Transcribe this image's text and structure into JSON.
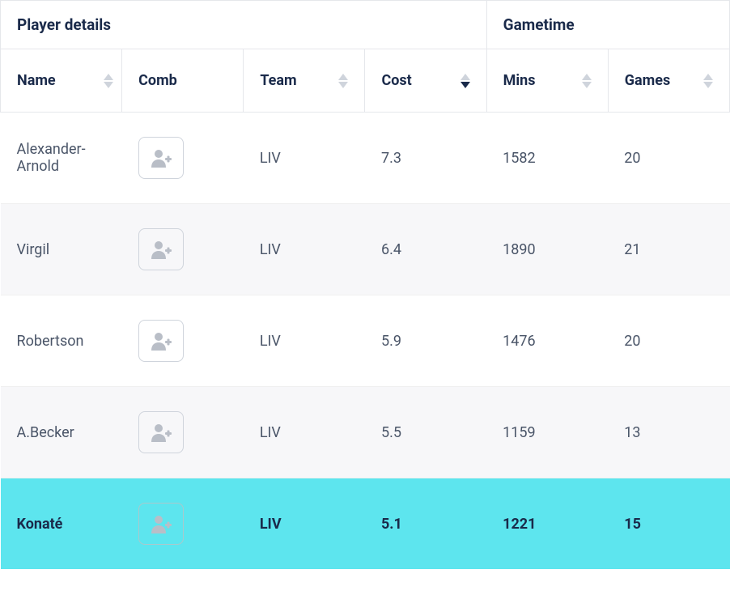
{
  "groups": [
    {
      "label": "Player details",
      "span": 4
    },
    {
      "label": "Gametime",
      "span": 2
    }
  ],
  "columns": [
    {
      "key": "name",
      "label": "Name",
      "sortable": true,
      "sorted": "none"
    },
    {
      "key": "comb",
      "label": "Comb",
      "sortable": false,
      "sorted": "none"
    },
    {
      "key": "team",
      "label": "Team",
      "sortable": true,
      "sorted": "none"
    },
    {
      "key": "cost",
      "label": "Cost",
      "sortable": true,
      "sorted": "desc"
    },
    {
      "key": "mins",
      "label": "Mins",
      "sortable": true,
      "sorted": "none"
    },
    {
      "key": "games",
      "label": "Games",
      "sortable": true,
      "sorted": "none"
    }
  ],
  "rows": [
    {
      "name": "Alexander-Arnold",
      "team": "LIV",
      "cost": "7.3",
      "mins": "1582",
      "games": "20",
      "highlight": false
    },
    {
      "name": "Virgil",
      "team": "LIV",
      "cost": "6.4",
      "mins": "1890",
      "games": "21",
      "highlight": false
    },
    {
      "name": "Robertson",
      "team": "LIV",
      "cost": "5.9",
      "mins": "1476",
      "games": "20",
      "highlight": false
    },
    {
      "name": "A.Becker",
      "team": "LIV",
      "cost": "5.5",
      "mins": "1159",
      "games": "13",
      "highlight": false
    },
    {
      "name": "Konaté",
      "team": "LIV",
      "cost": "5.1",
      "mins": "1221",
      "games": "15",
      "highlight": true
    }
  ],
  "colors": {
    "text_primary": "#1a2a4a",
    "text_body": "#4a5568",
    "border": "#e5e7eb",
    "stripe": "#f7f7f9",
    "highlight_bg": "#5de5ee",
    "sort_inactive": "#cfd4dc",
    "sort_active": "#1a2a4a",
    "icon_fill": "#b9bec7",
    "btn_border": "#cfd4dc"
  },
  "icon": "add-user"
}
